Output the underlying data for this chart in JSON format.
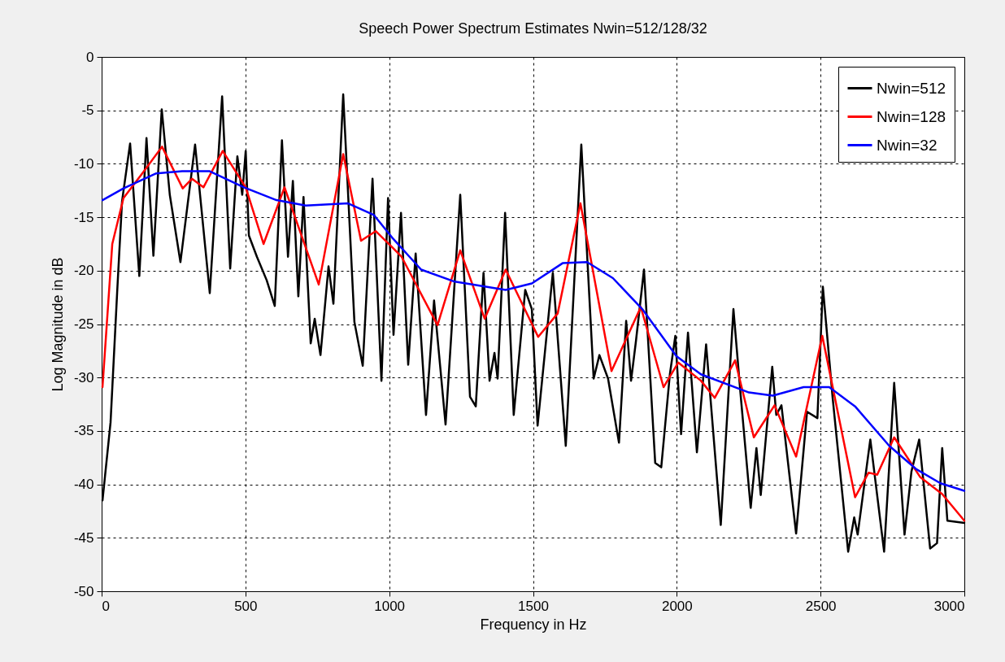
{
  "chart_data": {
    "type": "line",
    "title": "Speech Power Spectrum Estimates Nwin=512/128/32",
    "xlabel": "Frequency in Hz",
    "ylabel": "Log Magnitude in dB",
    "xlim": [
      0,
      3000
    ],
    "xticks": [
      0,
      500,
      1000,
      1500,
      2000,
      2500,
      3000
    ],
    "ylim": [
      -50,
      0
    ],
    "yticks": [
      -50,
      -45,
      -40,
      -35,
      -30,
      -25,
      -20,
      -15,
      -10,
      -5,
      0
    ],
    "grid": true,
    "legend": "top right",
    "series": [
      {
        "name": "Nwin=512",
        "color": "#000000",
        "x": [
          3,
          31,
          54,
          71,
          99,
          131,
          156,
          180,
          209,
          237,
          274,
          325,
          376,
          419,
          447,
          472,
          489,
          501,
          512,
          540,
          574,
          602,
          627,
          648,
          665,
          684,
          702,
          727,
          741,
          761,
          789,
          806,
          840,
          879,
          908,
          942,
          973,
          996,
          1015,
          1041,
          1066,
          1092,
          1128,
          1156,
          1196,
          1247,
          1281,
          1301,
          1328,
          1349,
          1366,
          1377,
          1403,
          1433,
          1473,
          1496,
          1516,
          1569,
          1614,
          1668,
          1711,
          1731,
          1761,
          1799,
          1824,
          1841,
          1858,
          1886,
          1925,
          1946,
          1976,
          1995,
          2015,
          2039,
          2070,
          2102,
          2153,
          2197,
          2221,
          2257,
          2277,
          2292,
          2332,
          2346,
          2364,
          2415,
          2453,
          2489,
          2508,
          2542,
          2596,
          2617,
          2629,
          2673,
          2721,
          2756,
          2792,
          2816,
          2843,
          2881,
          2905,
          2923,
          2941,
          3000
        ],
        "values": [
          -41.5,
          -34.2,
          -22,
          -13.5,
          -8.1,
          -20.5,
          -7.6,
          -18.6,
          -4.9,
          -12.9,
          -19.2,
          -8.2,
          -22.1,
          -3.7,
          -19.8,
          -9.3,
          -12.9,
          -8.8,
          -16.7,
          -18.7,
          -20.9,
          -23.3,
          -7.8,
          -18.7,
          -11.6,
          -22.4,
          -13.1,
          -26.8,
          -24.5,
          -27.9,
          -19.6,
          -23.1,
          -3.5,
          -24.8,
          -28.9,
          -11.4,
          -30.3,
          -13.2,
          -26,
          -14.6,
          -28.8,
          -18.4,
          -33.5,
          -22.8,
          -34.4,
          -12.9,
          -31.8,
          -32.7,
          -20.2,
          -30.3,
          -27.7,
          -30.1,
          -14.6,
          -33.5,
          -21.8,
          -23.6,
          -34.5,
          -20.2,
          -36.4,
          -8.2,
          -30.1,
          -27.9,
          -30.1,
          -36.1,
          -24.7,
          -30.3,
          -26.6,
          -19.9,
          -38,
          -38.4,
          -29.7,
          -26.1,
          -35.3,
          -25.8,
          -37,
          -26.9,
          -43.8,
          -23.6,
          -31.3,
          -42.2,
          -36.6,
          -41,
          -29,
          -33.5,
          -32.6,
          -44.6,
          -33.2,
          -33.8,
          -21.5,
          -31.9,
          -46.3,
          -43.1,
          -44.7,
          -35.8,
          -46.3,
          -30.5,
          -44.7,
          -38.8,
          -35.8,
          -46,
          -45.5,
          -36.6,
          -43.4,
          -43.6
        ]
      },
      {
        "name": "Nwin=128",
        "color": "#ff0000",
        "x": [
          3,
          37,
          76,
          144,
          210,
          282,
          314,
          354,
          421,
          501,
          563,
          636,
          755,
          840,
          902,
          953,
          1010,
          1043,
          1168,
          1247,
          1332,
          1405,
          1518,
          1586,
          1665,
          1773,
          1875,
          1954,
          2005,
          2084,
          2132,
          2203,
          2268,
          2340,
          2415,
          2506,
          2620,
          2667,
          2697,
          2756,
          2846,
          2923,
          3000
        ],
        "values": [
          -30.9,
          -17.5,
          -13.2,
          -10.8,
          -8.4,
          -12.3,
          -11.4,
          -12.2,
          -8.8,
          -12.2,
          -17.5,
          -12.2,
          -21.3,
          -9.1,
          -17.2,
          -16.3,
          -17.8,
          -18.7,
          -25.1,
          -18.1,
          -24.5,
          -19.9,
          -26.2,
          -24,
          -13.7,
          -29.4,
          -23.4,
          -30.9,
          -28.6,
          -30.3,
          -31.9,
          -28.4,
          -35.6,
          -32.6,
          -37.4,
          -26.1,
          -41.2,
          -38.9,
          -39.1,
          -35.6,
          -39.3,
          -40.9,
          -43.4
        ]
      },
      {
        "name": "Nwin=32",
        "color": "#0000ff",
        "x": [
          3,
          76,
          190,
          280,
          376,
          495,
          608,
          710,
          857,
          947,
          1010,
          1111,
          1224,
          1405,
          1496,
          1603,
          1688,
          1778,
          1880,
          1999,
          2084,
          2251,
          2334,
          2441,
          2530,
          2620,
          2739,
          2834,
          2917,
          3000
        ],
        "values": [
          -13.4,
          -12.3,
          -10.9,
          -10.7,
          -10.7,
          -12.2,
          -13.4,
          -13.9,
          -13.7,
          -14.8,
          -16.9,
          -19.9,
          -21,
          -21.8,
          -21.2,
          -19.3,
          -19.2,
          -20.7,
          -23.6,
          -28,
          -29.7,
          -31.4,
          -31.7,
          -30.9,
          -30.9,
          -32.7,
          -36.4,
          -38.6,
          -39.9,
          -40.6
        ]
      }
    ]
  }
}
